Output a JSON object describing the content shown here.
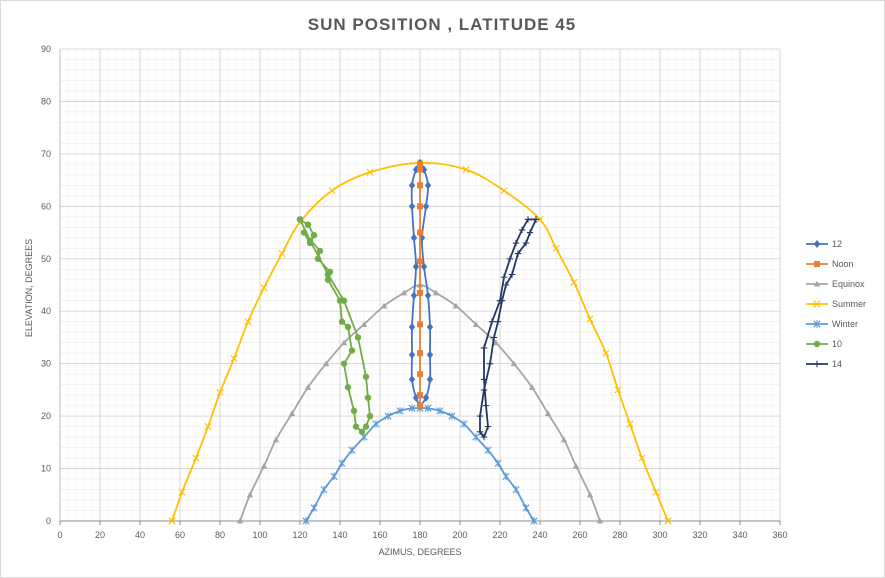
{
  "chart_data": {
    "type": "scatter",
    "title": "SUN POSITION , LATITUDE 45",
    "xlabel": "AZIMUS, DEGREES",
    "ylabel": "ELEVATION, DEGREES",
    "xlim": [
      0,
      360
    ],
    "ylim": [
      0,
      90
    ],
    "xticks": [
      0,
      20,
      40,
      60,
      80,
      100,
      120,
      140,
      160,
      180,
      200,
      220,
      240,
      260,
      280,
      300,
      320,
      340,
      360
    ],
    "yticks": [
      0,
      10,
      20,
      30,
      40,
      50,
      60,
      70,
      80,
      90
    ],
    "grid": true,
    "legend_position": "right",
    "series": [
      {
        "name": "12",
        "color": "#4472c4",
        "marker": "diamond",
        "smooth": true,
        "points": [
          [
            180,
            22
          ],
          [
            183,
            23.5
          ],
          [
            185,
            27
          ],
          [
            185,
            31.7
          ],
          [
            185,
            37
          ],
          [
            184,
            43
          ],
          [
            182,
            48.5
          ],
          [
            181,
            54
          ],
          [
            183,
            60
          ],
          [
            184,
            64
          ],
          [
            182,
            67
          ],
          [
            180,
            68.3
          ],
          [
            178,
            67
          ],
          [
            176,
            64
          ],
          [
            176,
            60
          ],
          [
            177,
            54
          ],
          [
            178,
            48.5
          ],
          [
            177,
            43
          ],
          [
            176,
            37
          ],
          [
            176,
            31.7
          ],
          [
            176,
            27
          ],
          [
            178,
            23.5
          ],
          [
            180,
            22
          ]
        ]
      },
      {
        "name": "Noon",
        "color": "#ed7d31",
        "marker": "square",
        "smooth": false,
        "points": [
          [
            180,
            22
          ],
          [
            180,
            24
          ],
          [
            180,
            28
          ],
          [
            180,
            32
          ],
          [
            180,
            37.5
          ],
          [
            180,
            43.5
          ],
          [
            180,
            49.5
          ],
          [
            180,
            55
          ],
          [
            180,
            60
          ],
          [
            180,
            64
          ],
          [
            180,
            67
          ],
          [
            180,
            68
          ]
        ]
      },
      {
        "name": "Equinox",
        "color": "#a5a5a5",
        "marker": "triangle",
        "smooth": true,
        "points": [
          [
            90,
            0
          ],
          [
            95,
            5
          ],
          [
            102,
            10.5
          ],
          [
            108,
            15.5
          ],
          [
            116,
            20.5
          ],
          [
            124,
            25.5
          ],
          [
            133,
            30
          ],
          [
            142,
            34
          ],
          [
            152,
            37.5
          ],
          [
            162,
            41
          ],
          [
            172,
            43.5
          ],
          [
            180,
            45
          ],
          [
            188,
            43.5
          ],
          [
            198,
            41
          ],
          [
            208,
            37.5
          ],
          [
            218,
            34
          ],
          [
            227,
            30
          ],
          [
            236,
            25.5
          ],
          [
            244,
            20.5
          ],
          [
            252,
            15.5
          ],
          [
            258,
            10.5
          ],
          [
            265,
            5
          ],
          [
            270,
            0
          ]
        ]
      },
      {
        "name": "Summer",
        "color": "#ffc000",
        "marker": "x",
        "smooth": true,
        "points": [
          [
            56,
            0
          ],
          [
            61,
            5.5
          ],
          [
            68,
            12
          ],
          [
            74,
            18
          ],
          [
            80,
            24.5
          ],
          [
            87,
            31
          ],
          [
            94,
            38
          ],
          [
            102,
            44.5
          ],
          [
            111,
            51
          ],
          [
            120,
            57
          ],
          [
            136,
            63
          ],
          [
            155,
            66.5
          ],
          [
            180,
            68.3
          ],
          [
            203,
            67
          ],
          [
            222,
            63
          ],
          [
            240,
            57.5
          ],
          [
            248,
            52
          ],
          [
            257,
            45.5
          ],
          [
            265,
            38.5
          ],
          [
            273,
            32
          ],
          [
            279,
            25
          ],
          [
            285,
            18.5
          ],
          [
            291,
            12
          ],
          [
            298,
            5.5
          ],
          [
            304,
            0
          ]
        ]
      },
      {
        "name": "Winter",
        "color": "#5b9bd5",
        "marker": "star",
        "smooth": true,
        "points": [
          [
            123,
            0
          ],
          [
            127,
            2.5
          ],
          [
            132,
            6
          ],
          [
            137,
            8.5
          ],
          [
            141,
            11
          ],
          [
            146,
            13.5
          ],
          [
            152,
            16
          ],
          [
            158,
            18.5
          ],
          [
            164,
            20
          ],
          [
            170,
            21
          ],
          [
            176,
            21.5
          ],
          [
            180,
            21.5
          ],
          [
            184,
            21.5
          ],
          [
            190,
            21
          ],
          [
            196,
            20
          ],
          [
            202,
            18.5
          ],
          [
            208,
            16
          ],
          [
            214,
            13.5
          ],
          [
            219,
            11
          ],
          [
            223,
            8.5
          ],
          [
            228,
            6
          ],
          [
            233,
            2.5
          ],
          [
            237,
            0
          ]
        ]
      },
      {
        "name": "10",
        "color": "#70ad47",
        "marker": "circle",
        "smooth": false,
        "points": [
          [
            120,
            57.5
          ],
          [
            124,
            56.5
          ],
          [
            127,
            54.5
          ],
          [
            125,
            53
          ],
          [
            122,
            55
          ],
          [
            130,
            51.5
          ],
          [
            129,
            50
          ],
          [
            135,
            47.5
          ],
          [
            134,
            46
          ],
          [
            140,
            42
          ],
          [
            141,
            38
          ],
          [
            144,
            37
          ],
          [
            146,
            32.5
          ],
          [
            142,
            30
          ],
          [
            144,
            25.5
          ],
          [
            147,
            21
          ],
          [
            148,
            18
          ],
          [
            151,
            17
          ],
          [
            153,
            18
          ],
          [
            155,
            20
          ],
          [
            154,
            23.5
          ],
          [
            153,
            27.5
          ],
          [
            149,
            35
          ],
          [
            142,
            42
          ],
          [
            134,
            47
          ],
          [
            125,
            53.5
          ],
          [
            120,
            57.5
          ]
        ]
      },
      {
        "name": "14",
        "color": "#203864",
        "marker": "plus",
        "smooth": false,
        "points": [
          [
            238,
            57.5
          ],
          [
            235,
            55
          ],
          [
            233,
            53
          ],
          [
            229,
            51
          ],
          [
            226,
            47
          ],
          [
            223,
            45
          ],
          [
            221,
            42
          ],
          [
            219,
            38
          ],
          [
            217,
            35
          ],
          [
            215,
            30
          ],
          [
            212,
            25
          ],
          [
            210,
            20
          ],
          [
            210,
            17
          ],
          [
            212,
            16
          ],
          [
            214,
            18
          ],
          [
            213,
            22
          ],
          [
            212,
            27
          ],
          [
            212,
            33
          ],
          [
            216,
            38
          ],
          [
            220,
            42
          ],
          [
            222,
            46.5
          ],
          [
            225,
            50
          ],
          [
            228,
            53
          ],
          [
            231,
            55.5
          ],
          [
            234,
            57.5
          ],
          [
            238,
            57.5
          ]
        ]
      }
    ]
  }
}
